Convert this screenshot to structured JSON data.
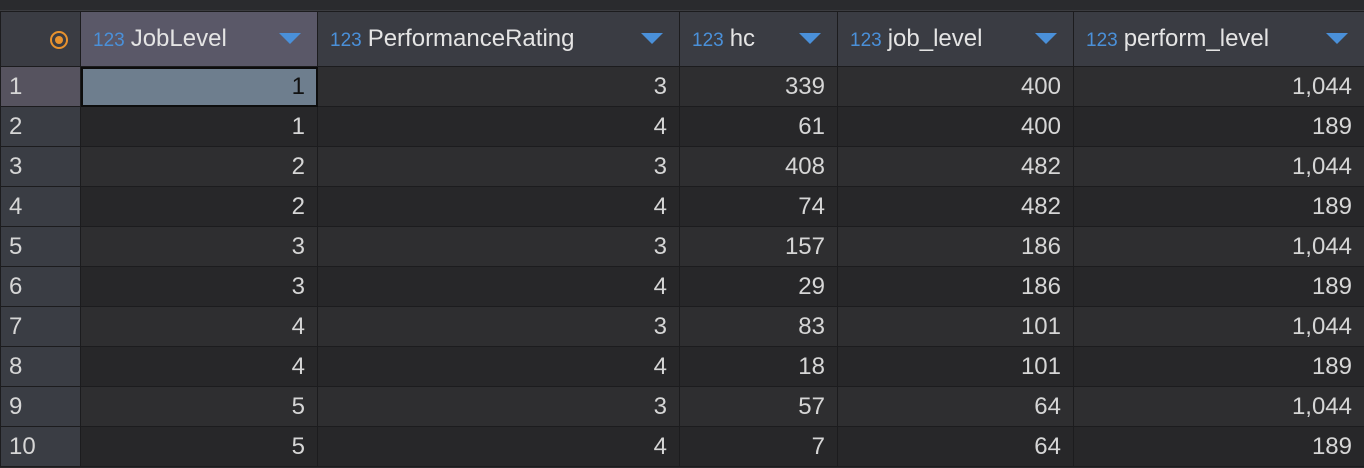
{
  "columns": [
    {
      "type": "123",
      "name": "JobLevel"
    },
    {
      "type": "123",
      "name": "PerformanceRating"
    },
    {
      "type": "123",
      "name": "hc"
    },
    {
      "type": "123",
      "name": "job_level"
    },
    {
      "type": "123",
      "name": "perform_level"
    }
  ],
  "rows": [
    {
      "n": "1",
      "c": [
        "1",
        "3",
        "339",
        "400",
        "1,044"
      ]
    },
    {
      "n": "2",
      "c": [
        "1",
        "4",
        "61",
        "400",
        "189"
      ]
    },
    {
      "n": "3",
      "c": [
        "2",
        "3",
        "408",
        "482",
        "1,044"
      ]
    },
    {
      "n": "4",
      "c": [
        "2",
        "4",
        "74",
        "482",
        "189"
      ]
    },
    {
      "n": "5",
      "c": [
        "3",
        "3",
        "157",
        "186",
        "1,044"
      ]
    },
    {
      "n": "6",
      "c": [
        "3",
        "4",
        "29",
        "186",
        "189"
      ]
    },
    {
      "n": "7",
      "c": [
        "4",
        "3",
        "83",
        "101",
        "1,044"
      ]
    },
    {
      "n": "8",
      "c": [
        "4",
        "4",
        "18",
        "101",
        "189"
      ]
    },
    {
      "n": "9",
      "c": [
        "5",
        "3",
        "57",
        "64",
        "1,044"
      ]
    },
    {
      "n": "10",
      "c": [
        "5",
        "4",
        "7",
        "64",
        "189"
      ]
    }
  ],
  "colors": {
    "accent": "#4a90d9",
    "corner": "#e8922e",
    "selection": "#6e7e8e"
  }
}
